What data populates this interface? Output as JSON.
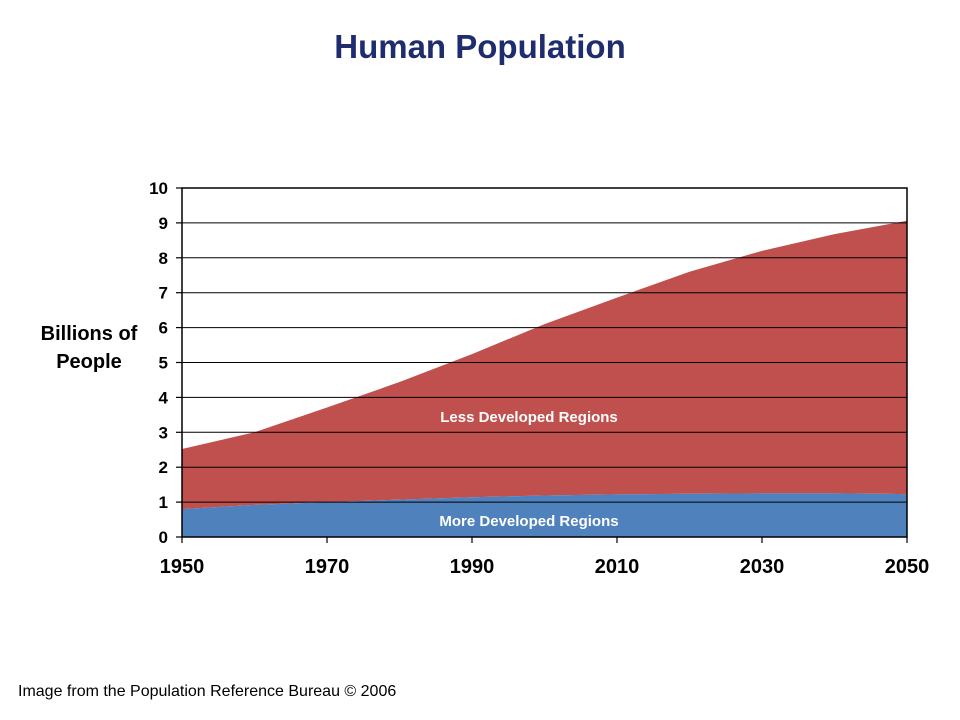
{
  "title": "Human Population",
  "ylabel_line1": "Billions of",
  "ylabel_line2": "People",
  "credit": "Image from the Population Reference Bureau © 2006",
  "colors": {
    "title": "#1f2d6e",
    "less_developed": "#c0504d",
    "more_developed": "#4f81bd",
    "series_label": "#ffffff",
    "grid": "#000000"
  },
  "chart_data": {
    "type": "area",
    "stacked": true,
    "title": "Human Population",
    "xlabel": "",
    "ylabel": "Billions of People",
    "xlim": [
      1950,
      2050
    ],
    "ylim": [
      0,
      10
    ],
    "x_ticks": [
      1950,
      1970,
      1990,
      2010,
      2030,
      2050
    ],
    "y_ticks": [
      0,
      1,
      2,
      3,
      4,
      5,
      6,
      7,
      8,
      9,
      10
    ],
    "grid": true,
    "x": [
      1950,
      1960,
      1970,
      1980,
      1990,
      2000,
      2010,
      2020,
      2030,
      2040,
      2050
    ],
    "series": [
      {
        "name": "More Developed Regions",
        "color": "#4f81bd",
        "values": [
          0.8,
          0.92,
          1.0,
          1.07,
          1.14,
          1.19,
          1.22,
          1.24,
          1.25,
          1.25,
          1.23
        ]
      },
      {
        "name": "Less Developed Regions",
        "color": "#c0504d",
        "values": [
          1.72,
          2.08,
          2.71,
          3.37,
          4.1,
          4.91,
          5.64,
          6.36,
          6.95,
          7.43,
          7.83
        ]
      }
    ]
  }
}
